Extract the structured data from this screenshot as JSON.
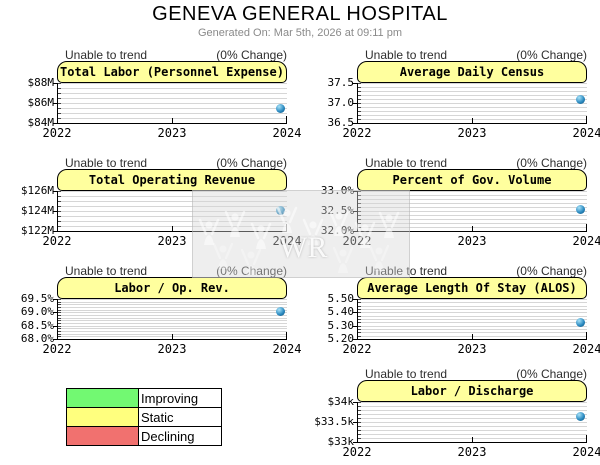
{
  "header": {
    "title": "GENEVA GENERAL HOSPITAL",
    "subtitle": "Generated On: Mar 5th, 2026 at 09:11 pm"
  },
  "chart_data": [
    {
      "type": "scatter",
      "title": "Total Labor (Personnel Expense)",
      "status": "Unable to trend",
      "change": "(0% Change)",
      "x_ticks": [
        "2022",
        "2023",
        "2024"
      ],
      "y_ticks": [
        {
          "label": "$88M",
          "value": 88
        },
        {
          "label": "$86M",
          "value": 86
        },
        {
          "label": "$84M",
          "value": 84
        }
      ],
      "ylim": [
        84,
        88
      ],
      "grid_divisions": 8,
      "points": [
        {
          "x": "2024",
          "value": 85.5
        }
      ]
    },
    {
      "type": "scatter",
      "title": "Average Daily Census",
      "status": "Unable to trend",
      "change": "(0% Change)",
      "x_ticks": [
        "2022",
        "2023",
        "2024"
      ],
      "y_ticks": [
        {
          "label": "37.5",
          "value": 37.5
        },
        {
          "label": "37.0",
          "value": 37.0
        },
        {
          "label": "36.5",
          "value": 36.5
        }
      ],
      "ylim": [
        36.5,
        37.5
      ],
      "grid_divisions": 10,
      "points": [
        {
          "x": "2024",
          "value": 37.1
        }
      ]
    },
    {
      "type": "scatter",
      "title": "Total Operating Revenue",
      "status": "Unable to trend",
      "change": "(0% Change)",
      "x_ticks": [
        "2022",
        "2023",
        "2024"
      ],
      "y_ticks": [
        {
          "label": "$126M",
          "value": 126
        },
        {
          "label": "$124M",
          "value": 124
        },
        {
          "label": "$122M",
          "value": 122
        }
      ],
      "ylim": [
        122,
        126
      ],
      "grid_divisions": 8,
      "points": [
        {
          "x": "2024",
          "value": 124.1
        }
      ]
    },
    {
      "type": "scatter",
      "title": "Percent of Gov. Volume",
      "status": "Unable to trend",
      "change": "(0% Change)",
      "x_ticks": [
        "2022",
        "2023",
        "2024"
      ],
      "y_ticks": [
        {
          "label": "33.0%",
          "value": 33.0
        },
        {
          "label": "32.5%",
          "value": 32.5
        },
        {
          "label": "32.0%",
          "value": 32.0
        }
      ],
      "ylim": [
        32.0,
        33.0
      ],
      "grid_divisions": 10,
      "points": [
        {
          "x": "2024",
          "value": 32.55
        }
      ]
    },
    {
      "type": "scatter",
      "title": "Labor / Op. Rev.",
      "status": "Unable to trend",
      "change": "(0% Change)",
      "x_ticks": [
        "2022",
        "2023",
        "2024"
      ],
      "y_ticks": [
        {
          "label": "69.5%",
          "value": 69.5
        },
        {
          "label": "69.0%",
          "value": 69.0
        },
        {
          "label": "68.5%",
          "value": 68.5
        },
        {
          "label": "68.0%",
          "value": 68.0
        }
      ],
      "ylim": [
        68.0,
        69.5
      ],
      "grid_divisions": 15,
      "points": [
        {
          "x": "2024",
          "value": 69.05
        }
      ]
    },
    {
      "type": "scatter",
      "title": "Average Length Of Stay (ALOS)",
      "status": "Unable to trend",
      "change": "(0% Change)",
      "x_ticks": [
        "2022",
        "2023",
        "2024"
      ],
      "y_ticks": [
        {
          "label": "5.50",
          "value": 5.5
        },
        {
          "label": "5.40",
          "value": 5.4
        },
        {
          "label": "5.30",
          "value": 5.3
        },
        {
          "label": "5.20",
          "value": 5.2
        }
      ],
      "ylim": [
        5.2,
        5.5
      ],
      "grid_divisions": 12,
      "points": [
        {
          "x": "2024",
          "value": 5.33
        }
      ]
    },
    {
      "type": "scatter",
      "title": "Labor / Discharge",
      "status": "Unable to trend",
      "change": "(0% Change)",
      "x_ticks": [
        "2022",
        "2023",
        "2024"
      ],
      "y_ticks": [
        {
          "label": "$34k",
          "value": 34.0
        },
        {
          "label": "$33.5k",
          "value": 33.5
        },
        {
          "label": "$33k",
          "value": 33.0
        }
      ],
      "ylim": [
        33.0,
        34.0
      ],
      "grid_divisions": 10,
      "points": [
        {
          "x": "2024",
          "value": 33.65
        }
      ]
    }
  ],
  "legend": {
    "items": [
      {
        "label": "Improving",
        "color": "#72f972"
      },
      {
        "label": "Static",
        "color": "#ffff7e"
      },
      {
        "label": "Declining",
        "color": "#f1716f"
      }
    ]
  },
  "watermark": {
    "text": "WR"
  },
  "colors": {
    "title_bar": "#ffff9e",
    "gridline": "#d6d6d6",
    "data_point": "#2d8cc2",
    "subtitle_text": "#8a8a8a"
  }
}
